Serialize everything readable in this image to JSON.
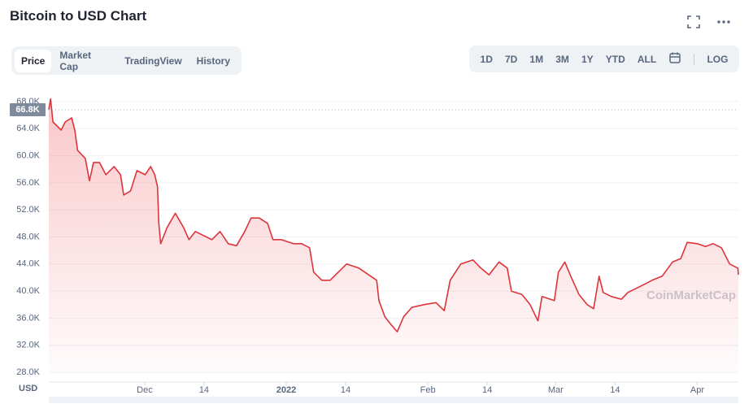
{
  "chart_data": {
    "type": "line",
    "title": "Bitcoin to USD Chart",
    "color": "#dc343b",
    "x": [
      0,
      0.4,
      0.9,
      2.7,
      3.6,
      5.0,
      5.7,
      6.3,
      8.0,
      8.9,
      9.8,
      11.1,
      12.5,
      14.3,
      15.7,
      16.4,
      17.9,
      19.3,
      21.1,
      22.3,
      23.2,
      23.8,
      24.1,
      24.5,
      25.9,
      27.7,
      29.5,
      30.7,
      32.1,
      33.9,
      35.7,
      37.5,
      39.3,
      41.1,
      42.9,
      44.3,
      46.1,
      47.9,
      49.1,
      50.9,
      53.6,
      55.4,
      57.1,
      58.0,
      59.8,
      61.6,
      63.4,
      65.2,
      67.9,
      70.5,
      71.8,
      72.3,
      73.6,
      75.0,
      76.3,
      77.7,
      79.5,
      82.1,
      84.8,
      86.6,
      87.9,
      90.2,
      92.9,
      94.6,
      96.4,
      98.6,
      100.4,
      101.3,
      103.6,
      105.4,
      107.1,
      108.0,
      110.7,
      111.6,
      113.0,
      114.3,
      116.1,
      117.9,
      119.3,
      120.5,
      121.4,
      123.2,
      125.4,
      126.8,
      128.6,
      130.4,
      132.1,
      134.3,
      136.6,
      138.4,
      139.8,
      142.0,
      143.8,
      145.5,
      147.3,
      149.1,
      150.9,
      151.0
    ],
    "values": [
      66800,
      68400,
      65000,
      63800,
      65000,
      65600,
      63800,
      60800,
      59600,
      56300,
      59000,
      59000,
      57200,
      58400,
      57200,
      54200,
      54800,
      57800,
      57200,
      58400,
      57200,
      55400,
      50000,
      47000,
      49400,
      51500,
      49400,
      47600,
      48800,
      48200,
      47600,
      48800,
      47000,
      46700,
      48800,
      50800,
      50800,
      50000,
      47600,
      47600,
      47000,
      47000,
      46400,
      42800,
      41600,
      41600,
      42800,
      44000,
      43400,
      42200,
      41600,
      38600,
      36200,
      35000,
      34000,
      36200,
      37600,
      38000,
      38300,
      37100,
      41600,
      44000,
      44600,
      43400,
      42400,
      44300,
      43400,
      40000,
      39500,
      38000,
      35600,
      39200,
      38600,
      42800,
      44300,
      42200,
      39500,
      38000,
      37400,
      42200,
      39800,
      39200,
      38800,
      39800,
      40400,
      41000,
      41600,
      42200,
      44300,
      44800,
      47200,
      47000,
      46600,
      47000,
      46400,
      44000,
      43400,
      42400
    ],
    "xlim": [
      0,
      151
    ],
    "xticks": [
      {
        "value": 21,
        "label": "Dec"
      },
      {
        "value": 34,
        "label": "14"
      },
      {
        "value": 52,
        "label": "2022"
      },
      {
        "value": 65,
        "label": "14"
      },
      {
        "value": 83,
        "label": "Feb"
      },
      {
        "value": 96,
        "label": "14"
      },
      {
        "value": 111,
        "label": "Mar"
      },
      {
        "value": 124,
        "label": "14"
      },
      {
        "value": 142,
        "label": "Apr"
      }
    ],
    "ylim": [
      28000,
      68000
    ],
    "yticks": [
      {
        "value": 28000,
        "label": "28.0K"
      },
      {
        "value": 32000,
        "label": "32.0K"
      },
      {
        "value": 36000,
        "label": "36.0K"
      },
      {
        "value": 40000,
        "label": "40.0K"
      },
      {
        "value": 44000,
        "label": "44.0K"
      },
      {
        "value": 48000,
        "label": "48.0K"
      },
      {
        "value": 52000,
        "label": "52.0K"
      },
      {
        "value": 56000,
        "label": "56.0K"
      },
      {
        "value": 60000,
        "label": "60.0K"
      },
      {
        "value": 64000,
        "label": "64.0K"
      },
      {
        "value": 68000,
        "label": "68.0K"
      }
    ],
    "grid": true,
    "price_line": {
      "value": 66800,
      "label": "66.8K"
    },
    "currency": "USD",
    "watermark": "CoinMarketCap"
  },
  "tabs": [
    "Price",
    "Market Cap",
    "TradingView",
    "History"
  ],
  "ranges": [
    "1D",
    "7D",
    "1M",
    "3M",
    "1Y",
    "YTD",
    "ALL"
  ],
  "log": "LOG"
}
